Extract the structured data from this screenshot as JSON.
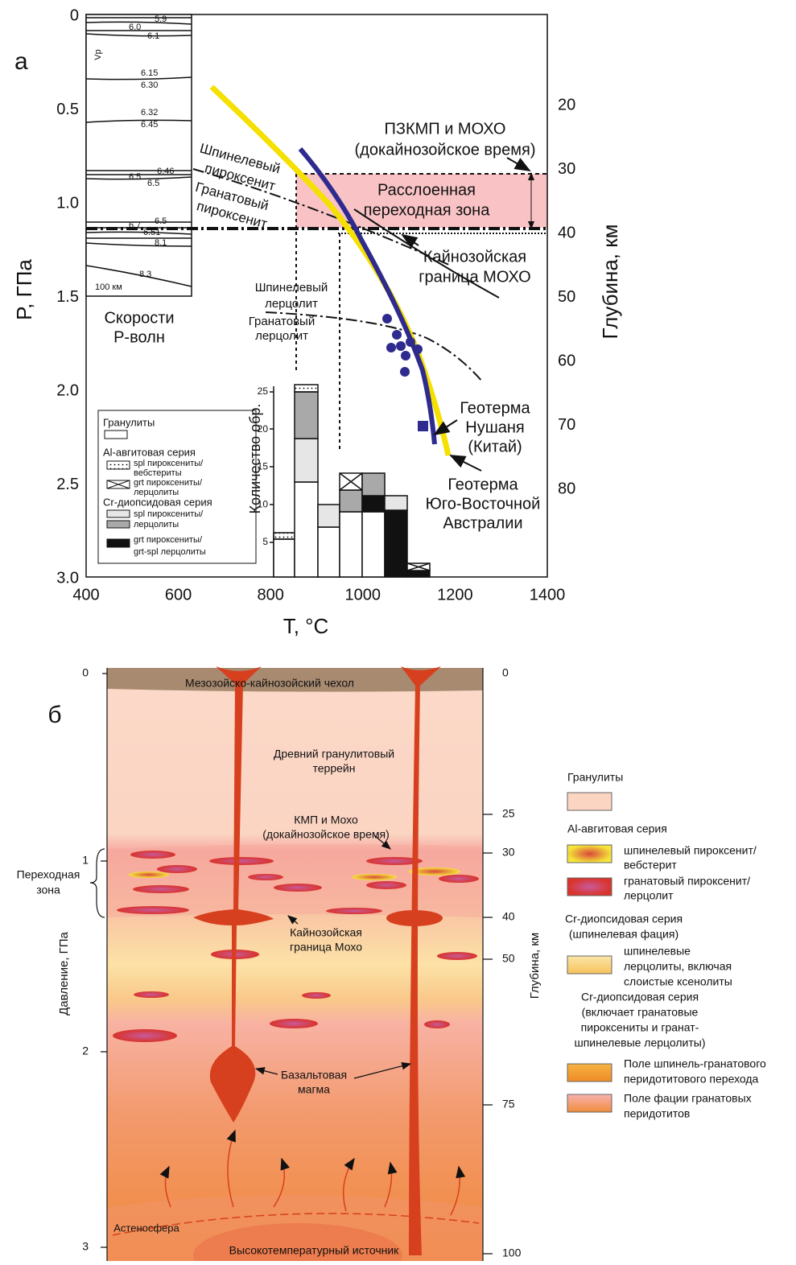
{
  "panel_a": {
    "label": "а",
    "y_axis": {
      "title": "P, ГПа",
      "ticks": [
        "0",
        "0.5",
        "1.0",
        "1.5",
        "2.0",
        "2.5",
        "3.0"
      ]
    },
    "x_axis": {
      "title": "T, °C",
      "ticks": [
        "400",
        "600",
        "800",
        "1000",
        "1200",
        "1400"
      ]
    },
    "y2_axis": {
      "title": "Глубина, км",
      "ticks": [
        "20",
        "30",
        "40",
        "50",
        "60",
        "70",
        "80"
      ]
    },
    "vp_column": {
      "header": "Vp",
      "labels": [
        "5.9",
        "6.0",
        "6.1",
        "6.15",
        "6.30",
        "6.32",
        "6.45",
        "6.46",
        "6.5",
        "6.5",
        "6.7",
        "6.5",
        "6.51",
        "8.1",
        "8.3",
        "100 км"
      ],
      "caption": [
        "Скорости",
        "Р-волн"
      ]
    },
    "annotations": {
      "moho_old": [
        "ПЗКМП и МОХО",
        "(докайнозойское время)"
      ],
      "transition_zone": [
        "Расслоенная",
        "переходная зона"
      ],
      "spinel_pyroxenite": [
        "Шпинелевый",
        "пироксенит"
      ],
      "garnet_pyroxenite": [
        "Гранатовый",
        "пироксенит"
      ],
      "moho_cenozoic": [
        "Кайнозойская",
        "граница МОХО"
      ],
      "spinel_lherzolite": [
        "Шпинелевый",
        "лерцолит"
      ],
      "garnet_lherzolite": [
        "Гранатовый",
        "лерцолит"
      ],
      "geotherm_nushan": [
        "Геотерма",
        "Нушаня",
        "(Китай)"
      ],
      "geotherm_australia": [
        "Геотерма",
        "Юго-Восточной",
        "Австралии"
      ]
    },
    "histogram": {
      "title": "Количество обр.",
      "ticks": [
        "5",
        "10",
        "15",
        "20",
        "25"
      ]
    },
    "legend": {
      "granulites": "Гранулиты",
      "al_series": "Al-авгитовая серия",
      "spl_pyr": [
        "spl пироксениты/",
        "вебстериты"
      ],
      "grt_pyr": [
        "grt пироксениты/",
        "лерцолиты"
      ],
      "cr_series": "Cr-диопсидовая серия",
      "cr_spl": [
        "spl пироксениты/",
        "лерцолиты"
      ],
      "cr_grt": [
        "grt пироксениты/",
        "grt-spl лерцолиты"
      ]
    }
  },
  "panel_b": {
    "label": "б",
    "y_axis": {
      "title": "Давление, ГПа",
      "ticks": [
        "0",
        "1",
        "2",
        "3"
      ]
    },
    "y2_axis": {
      "title": "Глубина, км",
      "ticks": [
        "0",
        "25",
        "30",
        "40",
        "50",
        "75",
        "100"
      ]
    },
    "transition_zone": [
      "Переходная",
      "зона"
    ],
    "labels": {
      "cover": "Мезозойско-кайнозойский чехол",
      "terrane": [
        "Древний гранулитовый",
        "террейн"
      ],
      "moho_old": [
        "КМП и Мохо",
        "(докайнозойское время)"
      ],
      "moho_cenozoic": [
        "Кайнозойская",
        "граница Мохо"
      ],
      "magma": [
        "Базальтовая",
        "магма"
      ],
      "asthenosphere": "Астеносфера",
      "source": "Высокотемпературный источник"
    },
    "legend": {
      "granulites": "Гранулиты",
      "al_series": "Al-авгитовая серия",
      "spl_pyr": [
        "шпинелевый пироксенит/",
        "вебстерит"
      ],
      "grt_pyr": [
        "гранатовый пироксенит/",
        "лерцолит"
      ],
      "cr_spl_series": [
        "Cr-диопсидовая серия",
        "(шпинелевая фация)"
      ],
      "spl_lherz": [
        "шпинелевые",
        "лерцолиты, включая",
        "слоистые ксенолиты"
      ],
      "cr_grt_series": [
        "Cr-диопсидовая серия",
        "(включает гранатовые",
        "пироксениты и гранат-",
        "шпинелевые лерцолиты)"
      ],
      "transition": [
        "Поле шпинель-гранатового",
        "перидотитового перехода"
      ],
      "garnet_field": [
        "Поле фации гранатовых",
        "перидотитов"
      ]
    }
  }
}
